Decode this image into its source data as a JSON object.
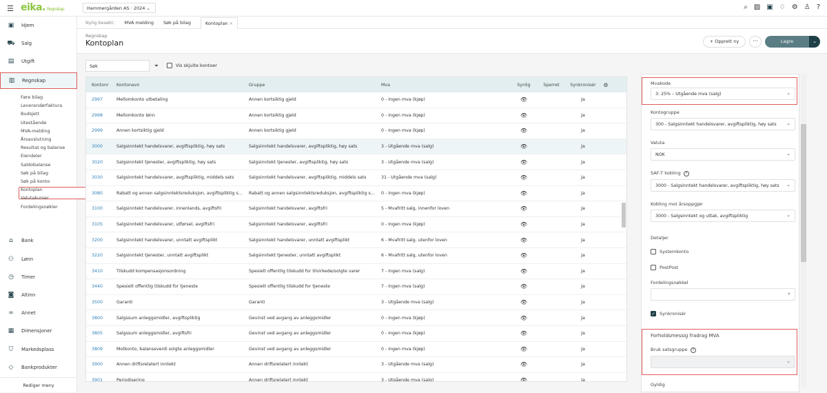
{
  "topbar": {
    "logo": "eika.",
    "logo_sub": "Regnskap",
    "company": "Hammergården AS · 2024",
    "icons": [
      "search-icon",
      "report-icon",
      "plus-square-icon",
      "bell-icon",
      "gear-icon",
      "user-icon",
      "help-icon"
    ]
  },
  "sidebar": {
    "items": [
      {
        "label": "Hjem",
        "icon": "home-icon"
      },
      {
        "label": "Salg",
        "icon": "cart-icon"
      },
      {
        "label": "Utgift",
        "icon": "receipt-icon"
      },
      {
        "label": "Regnskap",
        "icon": "ledger-icon",
        "active": true
      },
      {
        "label": "Bank",
        "icon": "bank-icon"
      },
      {
        "label": "Lønn",
        "icon": "people-icon"
      },
      {
        "label": "Timer",
        "icon": "clock-icon"
      },
      {
        "label": "Altinn",
        "icon": "altinn-icon"
      },
      {
        "label": "Annet",
        "icon": "infinity-icon"
      },
      {
        "label": "Dimensjoner",
        "icon": "dimension-icon"
      },
      {
        "label": "Markedsplass",
        "icon": "bag-icon"
      },
      {
        "label": "Bankprodukter",
        "icon": "tag-icon"
      }
    ],
    "subitems": [
      "Føre bilag",
      "Leverandørfaktura",
      "Budsjett",
      "Utestående",
      "MVA-melding",
      "Årsavslutning",
      "Resultat og balanse",
      "Eiendeler",
      "Saldobalanse",
      "Søk på bilag",
      "Søk på konto",
      "Kontoplan",
      "Valutakurser",
      "Fordelingsnøkler"
    ],
    "selected_sub": "Kontoplan",
    "edit_menu": "Rediger meny"
  },
  "recent": {
    "label": "Nylig besøkt:",
    "links": [
      "MVA melding",
      "Søk på bilag"
    ],
    "active_tab": "Kontoplan",
    "close": "×"
  },
  "header": {
    "breadcrumb": "Regnskap",
    "title": "Kontoplan",
    "create_new": "+ Opprett ny",
    "more": "···",
    "save": "Lagre",
    "save_dropdown": "⌄"
  },
  "toolbar": {
    "search_placeholder": "Søk",
    "show_hidden": "Vis skjulte kontoer"
  },
  "table": {
    "columns": [
      "Kontonr",
      "Kontonavn",
      "Gruppe",
      "Mva",
      "Synlig",
      "Sperret",
      "Synkronisér"
    ],
    "rows": [
      [
        "2997",
        "Mellomkonto utbetaling",
        "Annen kortsiktig gjeld",
        "0 - Ingen mva (kjøp)",
        "Ja"
      ],
      [
        "2998",
        "Mellomkonto lønn",
        "Annen kortsiktig gjeld",
        "0 - Ingen mva (kjøp)",
        "Ja"
      ],
      [
        "2999",
        "Annen kortsiktig gjeld",
        "Annen kortsiktig gjeld",
        "0 - Ingen mva (kjøp)",
        "Ja"
      ],
      [
        "3000",
        "Salgsinntekt handelsvarer, avgiftspliktig, høy sats",
        "Salgsinntekt handelsvarer, avgiftspliktig, høy sats",
        "3 - Utgående mva (salg)",
        "Ja"
      ],
      [
        "3020",
        "Salgsinntekt tjenester, avgiftspliktig, høy sats",
        "Salgsinntekt tjenester, avgiftspliktig, høy sats",
        "3 - Utgående mva (salg)",
        "Ja"
      ],
      [
        "3030",
        "Salgsinntekt handelsvarer, avgiftspliktig, middels sats",
        "Salgsinntekt handelsvarer, avgiftspliktig, middels sats",
        "31 - Utgående mva (salg)",
        "Ja"
      ],
      [
        "3080",
        "Rabatt og annen salgsinntektsreduksjon, avgiftspliktig s...",
        "Rabatt og annen salgsinntektsreduksjon, avgiftspliktig s...",
        "0 - Ingen mva (kjøp)",
        "Ja"
      ],
      [
        "3100",
        "Salgsinntekt handelsvarer, innenlands, avgiftsfri",
        "Salgsinntekt handelsvarer, avgiftsfri",
        "5 - Mvafritt salg, innenfor loven",
        "Ja"
      ],
      [
        "3105",
        "Salgsinntekt handelsvarer, utførsel, avgiftsfri",
        "Salgsinntekt handelsvarer, avgiftsfri",
        "0 - Ingen mva (kjøp)",
        "Ja"
      ],
      [
        "3200",
        "Salgsinntekt handelsvarer, unntatt avgiftsplikt",
        "Salgsinntekt handelsvarer, unntatt avgiftsplikt",
        "6 - Mvafritt salg, utenfor loven",
        "Ja"
      ],
      [
        "3220",
        "Salgsinntekt tjenester, unntatt avgiftsplikt",
        "Salgsinntekt tjenester, unntatt avgiftsplikt",
        "6 - Mvafritt salg, utenfor loven",
        "Ja"
      ],
      [
        "3410",
        "Tilskudd kompensasjonsordning",
        "Spesielt offentlig tilskudd for tilvirkede/solgte varer",
        "7 - Ingen mva (salg)",
        "Ja"
      ],
      [
        "3440",
        "Spesielt offentlig tilskudd for tjeneste",
        "Spesielt offentlig tilskudd for tjeneste",
        "7 - Ingen mva (salg)",
        "Ja"
      ],
      [
        "3500",
        "Garanti",
        "Garanti",
        "3 - Utgående mva (salg)",
        "Ja"
      ],
      [
        "3800",
        "Salgssum anleggsmidler, avgiftspliktig",
        "Gevinst ved avgang av anleggsmidler",
        "0 - Ingen mva (kjøp)",
        "Ja"
      ],
      [
        "3805",
        "Salgssum anleggsmidler, avgiftsfri",
        "Gevinst ved avgang av anleggsmidler",
        "0 - Ingen mva (kjøp)",
        "Ja"
      ],
      [
        "3809",
        "Motkonto, balanseverdi solgte anleggsmidler",
        "Gevinst ved avgang av anleggsmidler",
        "0 - Ingen mva (kjøp)",
        "Ja"
      ],
      [
        "3900",
        "Annen driftsrelatert inntekt",
        "Annen driftsrelatert inntekt",
        "3 - Utgående mva (salg)",
        "Ja"
      ],
      [
        "3901",
        "Periodisering",
        "Annen driftsrelatert inntekt",
        "3 - Utgående mva (salg)",
        "Ja"
      ]
    ],
    "selected_row": "3000"
  },
  "detail": {
    "mvakode": {
      "label": "Mvakode",
      "value": "3: 25% – Utgående mva (salg)"
    },
    "kontogruppe": {
      "label": "Kontogruppe",
      "value": "300 - Salgsinntekt handelsvarer, avgiftspliktig, høy sats"
    },
    "valuta": {
      "label": "Valuta",
      "value": "NOK"
    },
    "saft": {
      "label": "SAF-T kobling",
      "value": "3000 - Salgsinntekt handelsvarer, avgiftspliktig, høy sats"
    },
    "arsoppgjor": {
      "label": "Kobling mot årsoppgjør",
      "value": "3000 - Salgsinntekt og uttak, avgiftspliktig"
    },
    "detaljer": "Detaljer",
    "systemkonto": "Systemkonto",
    "postpost": "PostPost",
    "fordelingsnokkel": {
      "label": "Fordelingsnøkkel",
      "value": ""
    },
    "synkroniser": "Synkronisér",
    "forholdsmessig": "Forholdsmessig fradrag MVA",
    "satsgruppe": {
      "label": "Bruk satsgruppe",
      "value": ""
    },
    "gyldig": "Gyldig"
  }
}
